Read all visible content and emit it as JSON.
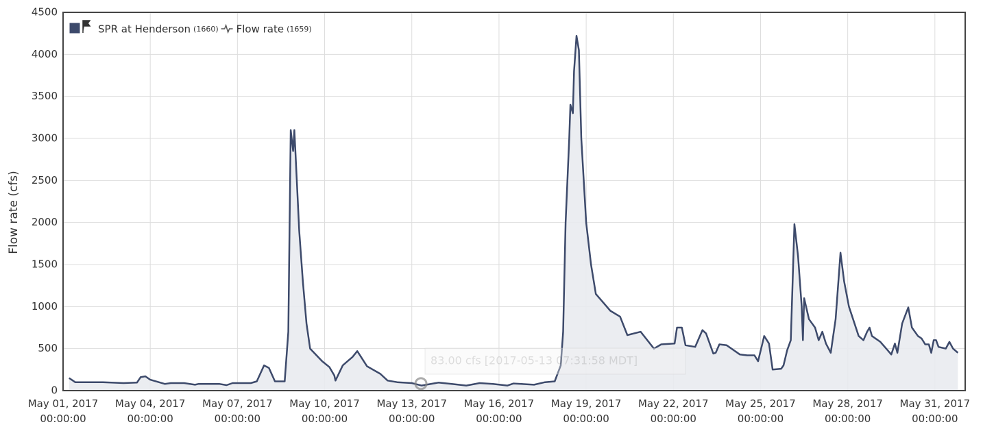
{
  "chart_data": {
    "type": "area",
    "y_label": "Flow rate (cfs)",
    "station": "SPR at Henderson",
    "station_id": "(1660)",
    "ylim": [
      0,
      4500
    ],
    "yticks": [
      0,
      500,
      1000,
      1500,
      2000,
      2500,
      3000,
      3500,
      4000,
      4500
    ],
    "xlim": [
      "2017-05-01 00:00:00",
      "2017-06-01 01:00:00"
    ],
    "xticks": [
      {
        "value": "2017-05-01 00:00:00",
        "label": "May 01, 2017\n00:00:00"
      },
      {
        "value": "2017-05-04 00:00:00",
        "label": "May 04, 2017\n00:00:00"
      },
      {
        "value": "2017-05-07 00:00:00",
        "label": "May 07, 2017\n00:00:00"
      },
      {
        "value": "2017-05-10 00:00:00",
        "label": "May 10, 2017\n00:00:00"
      },
      {
        "value": "2017-05-13 00:00:00",
        "label": "May 13, 2017\n00:00:00"
      },
      {
        "value": "2017-05-16 00:00:00",
        "label": "May 16, 2017\n00:00:00"
      },
      {
        "value": "2017-05-19 00:00:00",
        "label": "May 19, 2017\n00:00:00"
      },
      {
        "value": "2017-05-22 00:00:00",
        "label": "May 22, 2017\n00:00:00"
      },
      {
        "value": "2017-05-25 00:00:00",
        "label": "May 25, 2017\n00:00:00"
      },
      {
        "value": "2017-05-28 00:00:00",
        "label": "May 28, 2017\n00:00:00"
      },
      {
        "value": "2017-05-31 00:00:00",
        "label": "May 31, 2017\n00:00:00"
      }
    ],
    "grid": true,
    "x": [
      "2017-05-01 05:00:00",
      "2017-05-01 10:00:00",
      "2017-05-02 09:00:00",
      "2017-05-03 02:00:00",
      "2017-05-03 13:00:00",
      "2017-05-03 16:00:00",
      "2017-05-03 20:00:00",
      "2017-05-04 00:00:00",
      "2017-05-04 12:00:00",
      "2017-05-04 17:00:00",
      "2017-05-05 04:00:00",
      "2017-05-05 13:00:00",
      "2017-05-05 16:00:00",
      "2017-05-06 09:00:00",
      "2017-05-06 15:00:00",
      "2017-05-06 20:00:00",
      "2017-05-07 11:00:00",
      "2017-05-07 16:00:00",
      "2017-05-07 22:00:00",
      "2017-05-08 02:00:00",
      "2017-05-08 07:00:00",
      "2017-05-08 15:00:00",
      "2017-05-08 18:00:00",
      "2017-05-08 20:00:00",
      "2017-05-08 22:00:00",
      "2017-05-08 23:00:00",
      "2017-05-09 00:00:00",
      "2017-05-09 03:00:00",
      "2017-05-09 06:00:00",
      "2017-05-09 09:00:00",
      "2017-05-09 12:00:00",
      "2017-05-09 22:00:00",
      "2017-05-10 04:00:00",
      "2017-05-10 08:00:00",
      "2017-05-10 09:00:00",
      "2017-05-10 15:00:00",
      "2017-05-10 23:00:00",
      "2017-05-11 03:00:00",
      "2017-05-11 11:00:00",
      "2017-05-11 22:00:00",
      "2017-05-12 04:00:00",
      "2017-05-12 12:00:00",
      "2017-05-13 00:00:00",
      "2017-05-13 08:00:00",
      "2017-05-13 22:00:00",
      "2017-05-14 09:00:00",
      "2017-05-14 21:00:00",
      "2017-05-15 08:00:00",
      "2017-05-15 19:00:00",
      "2017-05-16 07:00:00",
      "2017-05-16 12:00:00",
      "2017-05-17 05:00:00",
      "2017-05-17 14:00:00",
      "2017-05-17 22:00:00",
      "2017-05-18 03:00:00",
      "2017-05-18 05:00:00",
      "2017-05-18 07:00:00",
      "2017-05-18 10:00:00",
      "2017-05-18 11:00:00",
      "2017-05-18 13:00:00",
      "2017-05-18 14:00:00",
      "2017-05-18 16:00:00",
      "2017-05-18 18:00:00",
      "2017-05-18 20:00:00",
      "2017-05-19 00:00:00",
      "2017-05-19 04:00:00",
      "2017-05-19 08:00:00",
      "2017-05-19 20:00:00",
      "2017-05-20 04:00:00",
      "2017-05-20 10:00:00",
      "2017-05-20 21:00:00",
      "2017-05-21 08:00:00",
      "2017-05-21 14:00:00",
      "2017-05-22 01:00:00",
      "2017-05-22 03:00:00",
      "2017-05-22 07:00:00",
      "2017-05-22 10:00:00",
      "2017-05-22 18:00:00",
      "2017-05-23 00:00:00",
      "2017-05-23 03:00:00",
      "2017-05-23 09:00:00",
      "2017-05-23 11:00:00",
      "2017-05-23 14:00:00",
      "2017-05-23 20:00:00",
      "2017-05-24 07:00:00",
      "2017-05-24 13:00:00",
      "2017-05-24 19:00:00",
      "2017-05-24 22:00:00",
      "2017-05-25 03:00:00",
      "2017-05-25 07:00:00",
      "2017-05-25 10:00:00",
      "2017-05-25 17:00:00",
      "2017-05-25 19:00:00",
      "2017-05-25 22:00:00",
      "2017-05-26 01:00:00",
      "2017-05-26 04:00:00",
      "2017-05-26 07:00:00",
      "2017-05-26 10:00:00",
      "2017-05-26 11:00:00",
      "2017-05-26 12:00:00",
      "2017-05-26 16:00:00",
      "2017-05-26 21:00:00",
      "2017-05-27 00:00:00",
      "2017-05-27 03:00:00",
      "2017-05-27 06:00:00",
      "2017-05-27 10:00:00",
      "2017-05-27 14:00:00",
      "2017-05-27 18:00:00",
      "2017-05-27 21:00:00",
      "2017-05-28 01:00:00",
      "2017-05-28 09:00:00",
      "2017-05-28 13:00:00",
      "2017-05-28 16:00:00",
      "2017-05-28 18:00:00",
      "2017-05-28 20:00:00",
      "2017-05-29 03:00:00",
      "2017-05-29 09:00:00",
      "2017-05-29 12:00:00",
      "2017-05-29 15:00:00",
      "2017-05-29 17:00:00",
      "2017-05-29 21:00:00",
      "2017-05-30 02:00:00",
      "2017-05-30 05:00:00",
      "2017-05-30 10:00:00",
      "2017-05-30 13:00:00",
      "2017-05-30 16:00:00",
      "2017-05-30 19:00:00",
      "2017-05-30 21:00:00",
      "2017-05-30 23:00:00",
      "2017-05-31 01:00:00",
      "2017-05-31 03:00:00",
      "2017-05-31 09:00:00",
      "2017-05-31 12:00:00",
      "2017-05-31 15:00:00",
      "2017-05-31 19:00:00"
    ],
    "series": [
      {
        "name": "Flow rate",
        "id": "(1659)",
        "color": "#3d4a6b",
        "fill": "#e9ebf0",
        "values": [
          150,
          100,
          100,
          90,
          95,
          160,
          170,
          130,
          80,
          90,
          90,
          70,
          80,
          80,
          65,
          90,
          90,
          110,
          300,
          270,
          110,
          110,
          700,
          3100,
          2850,
          3100,
          2800,
          1900,
          1300,
          800,
          500,
          350,
          280,
          180,
          120,
          300,
          400,
          470,
          290,
          200,
          120,
          100,
          90,
          60,
          95,
          80,
          60,
          90,
          80,
          60,
          85,
          70,
          100,
          110,
          300,
          700,
          2000,
          3000,
          3400,
          3300,
          3800,
          4220,
          4050,
          3000,
          2000,
          1500,
          1150,
          950,
          880,
          660,
          700,
          500,
          550,
          560,
          750,
          750,
          540,
          520,
          720,
          680,
          440,
          450,
          550,
          540,
          430,
          420,
          420,
          350,
          650,
          560,
          250,
          260,
          300,
          480,
          600,
          1980,
          1600,
          1000,
          600,
          1100,
          850,
          750,
          600,
          700,
          560,
          450,
          850,
          1640,
          1300,
          1000,
          650,
          600,
          700,
          750,
          650,
          580,
          480,
          430,
          560,
          450,
          800,
          990,
          750,
          650,
          620,
          550,
          550,
          450,
          600,
          600,
          520,
          500,
          580,
          500,
          450
        ]
      }
    ],
    "hover": {
      "x": "2017-05-13 07:31:58",
      "value": 83,
      "label": "83.00 cfs [2017-05-13 07:31:58 MDT]"
    }
  }
}
